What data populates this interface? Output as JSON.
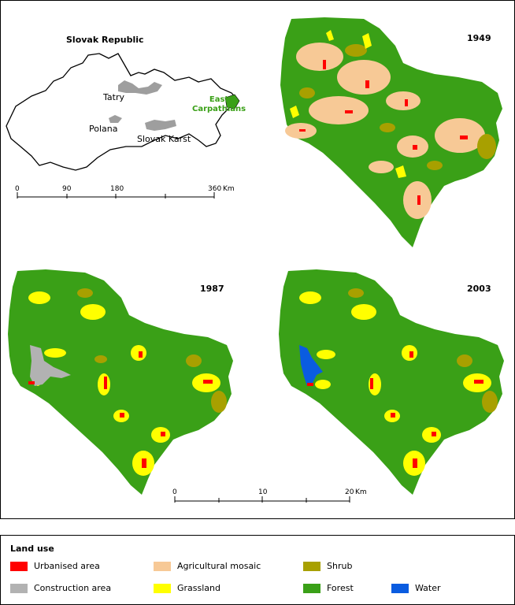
{
  "overview": {
    "title": "Slovak Republic",
    "places": [
      "Tatry",
      "Polana",
      "Slovak Karst"
    ],
    "highlight_line1": "East",
    "highlight_line2": "Carpathians",
    "scale_ticks": [
      "0",
      "90",
      "180",
      "360"
    ],
    "scale_unit": "Km"
  },
  "panels": {
    "p1949": "1949",
    "p1987": "1987",
    "p2003": "2003"
  },
  "scale": {
    "ticks": [
      "0",
      "10",
      "20"
    ],
    "unit": "Km"
  },
  "legend": {
    "title": "Land use",
    "items": [
      {
        "label": "Urbanised area",
        "color": "#ff0000"
      },
      {
        "label": "Agricultural mosaic",
        "color": "#f7c996"
      },
      {
        "label": "Shrub",
        "color": "#a8a000"
      },
      {
        "label": "Construction area",
        "color": "#b2b2b2"
      },
      {
        "label": "Grassland",
        "color": "#ffff00"
      },
      {
        "label": "Forest",
        "color": "#3aa017"
      },
      {
        "label": "Water",
        "color": "#0a5ce0"
      }
    ]
  }
}
